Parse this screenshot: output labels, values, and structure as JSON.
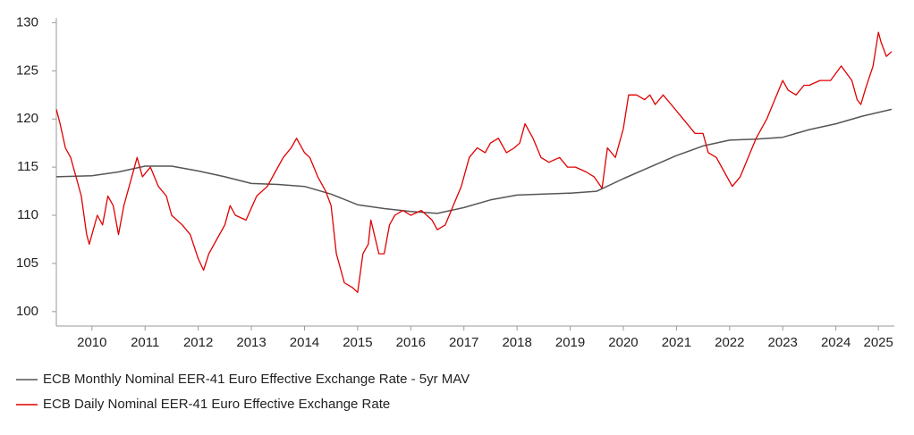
{
  "chart_data": {
    "type": "line",
    "xlim": [
      2009.83,
      2025.6
    ],
    "xticks": [
      {
        "value": 2010.5,
        "label": "2010"
      },
      {
        "value": 2011.5,
        "label": "2011"
      },
      {
        "value": 2012.5,
        "label": "2012"
      },
      {
        "value": 2013.5,
        "label": "2013"
      },
      {
        "value": 2014.5,
        "label": "2014"
      },
      {
        "value": 2015.5,
        "label": "2015"
      },
      {
        "value": 2016.5,
        "label": "2016"
      },
      {
        "value": 2017.5,
        "label": "2017"
      },
      {
        "value": 2018.5,
        "label": "2018"
      },
      {
        "value": 2019.5,
        "label": "2019"
      },
      {
        "value": 2020.5,
        "label": "2020"
      },
      {
        "value": 2021.5,
        "label": "2021"
      },
      {
        "value": 2022.5,
        "label": "2022"
      },
      {
        "value": 2023.5,
        "label": "2023"
      },
      {
        "value": 2024.5,
        "label": "2024"
      },
      {
        "value": 2025.3,
        "label": "2025"
      }
    ],
    "ylim": [
      98.5,
      130.5
    ],
    "yticks": [
      100,
      105,
      110,
      115,
      120,
      125,
      130
    ],
    "grid": false,
    "legend": "bottom-left",
    "series": [
      {
        "name": "ECB Monthly Nominal EER-41 Euro Effective Exchange Rate - 5yr MAV",
        "color": "#555555",
        "x": [
          2009.83,
          2010.5,
          2011.0,
          2011.5,
          2012.0,
          2012.5,
          2013.0,
          2013.5,
          2014.0,
          2014.5,
          2015.0,
          2015.5,
          2016.0,
          2016.5,
          2017.0,
          2017.5,
          2018.0,
          2018.5,
          2019.0,
          2019.5,
          2020.0,
          2020.5,
          2021.0,
          2021.5,
          2022.0,
          2022.5,
          2023.0,
          2023.5,
          2024.0,
          2024.5,
          2025.0,
          2025.55
        ],
        "values": [
          114.0,
          114.1,
          114.5,
          115.1,
          115.1,
          114.6,
          114.0,
          113.3,
          113.2,
          113.0,
          112.2,
          111.1,
          110.7,
          110.4,
          110.2,
          110.8,
          111.6,
          112.1,
          112.2,
          112.3,
          112.5,
          113.8,
          115.0,
          116.2,
          117.2,
          117.8,
          117.9,
          118.1,
          118.9,
          119.5,
          120.3,
          121.0
        ]
      },
      {
        "name": "ECB Daily Nominal EER-41 Euro Effective Exchange Rate",
        "color": "#e00000",
        "x": [
          2009.83,
          2009.9,
          2010.0,
          2010.1,
          2010.2,
          2010.3,
          2010.4,
          2010.45,
          2010.6,
          2010.7,
          2010.8,
          2010.9,
          2011.0,
          2011.1,
          2011.25,
          2011.35,
          2011.45,
          2011.6,
          2011.75,
          2011.9,
          2012.0,
          2012.2,
          2012.35,
          2012.5,
          2012.6,
          2012.7,
          2012.85,
          2013.0,
          2013.1,
          2013.2,
          2013.4,
          2013.6,
          2013.8,
          2013.95,
          2014.1,
          2014.25,
          2014.35,
          2014.5,
          2014.6,
          2014.75,
          2014.9,
          2015.0,
          2015.1,
          2015.25,
          2015.4,
          2015.5,
          2015.6,
          2015.7,
          2015.75,
          2015.9,
          2016.0,
          2016.1,
          2016.2,
          2016.35,
          2016.5,
          2016.7,
          2016.9,
          2017.0,
          2017.15,
          2017.3,
          2017.45,
          2017.6,
          2017.75,
          2017.9,
          2018.0,
          2018.15,
          2018.3,
          2018.45,
          2018.55,
          2018.65,
          2018.8,
          2018.95,
          2019.1,
          2019.3,
          2019.45,
          2019.6,
          2019.8,
          2019.95,
          2020.1,
          2020.2,
          2020.35,
          2020.5,
          2020.6,
          2020.75,
          2020.9,
          2021.0,
          2021.1,
          2021.25,
          2021.4,
          2021.55,
          2021.7,
          2021.85,
          2022.0,
          2022.1,
          2022.25,
          2022.4,
          2022.55,
          2022.7,
          2022.85,
          2023.0,
          2023.2,
          2023.35,
          2023.5,
          2023.6,
          2023.75,
          2023.9,
          2024.0,
          2024.2,
          2024.4,
          2024.6,
          2024.8,
          2024.9,
          2024.97,
          2025.05,
          2025.2,
          2025.3,
          2025.35,
          2025.45,
          2025.55
        ],
        "values": [
          121,
          119.5,
          117,
          116,
          114,
          112,
          108,
          107,
          110,
          109,
          112,
          111,
          108,
          111,
          114,
          116,
          114,
          115,
          113,
          112,
          110,
          109,
          108,
          105.5,
          104.3,
          106,
          107.5,
          109,
          111,
          110,
          109.5,
          112,
          113,
          114.5,
          116,
          117,
          118,
          116.5,
          116,
          114,
          112.5,
          111,
          106,
          103,
          102.5,
          102,
          106,
          107,
          109.5,
          106,
          106,
          109,
          110,
          110.5,
          110,
          110.5,
          109.5,
          108.5,
          109,
          111,
          113,
          116,
          117,
          116.5,
          117.5,
          118,
          116.5,
          117,
          117.5,
          119.5,
          118,
          116,
          115.5,
          116,
          115,
          115,
          114.5,
          114,
          112.8,
          117,
          116,
          119,
          122.5,
          122.5,
          122,
          122.5,
          121.5,
          122.5,
          121.5,
          120.5,
          119.5,
          118.5,
          118.5,
          116.5,
          116,
          114.5,
          113,
          114,
          116,
          118,
          120,
          122,
          124,
          123,
          122.5,
          123.5,
          123.5,
          124,
          124,
          125.5,
          124,
          122,
          121.5,
          123,
          125.5,
          129,
          128,
          126.5,
          127
        ]
      }
    ]
  }
}
